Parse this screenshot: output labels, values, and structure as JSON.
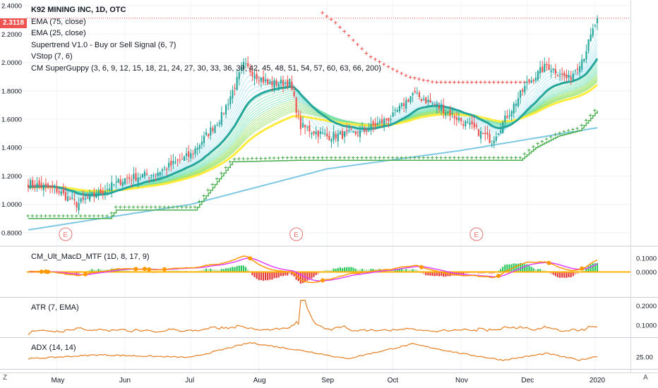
{
  "legend": {
    "title": "K92 MINING INC, 1D, OTC",
    "ema75": "EMA (75, close)",
    "ema25": "EMA (25, close)",
    "supertrend": "Supertrend V1.0 - Buy or Sell Signal (6, 7)",
    "vstop": "VStop (7, 6)",
    "guppy": "CM SuperGuppy (3, 6, 9, 12, 15, 18, 21, 24, 27, 30, 33, 36, 39, 42, 45, 48, 51, 54, 57, 60, 63, 66, 200)"
  },
  "last_price_label": "2.3118",
  "panes": {
    "macd": "CM_Ult_MacD_MTF (1D, 8, 17, 9)",
    "atr": "ATR (7, EMA)",
    "adx": "ADX (14, 14)"
  },
  "corner": {
    "left": "Z",
    "right": "A"
  },
  "colors": {
    "up": "#26a69a",
    "down": "#ef5350",
    "cyan": "#4fc3f7",
    "ema200": "#7ec8e3",
    "yellow": "#ffeb3b",
    "ema_thick": "#26a69a",
    "vstop": "#4caf50",
    "supertrend_sell": "#ef5350",
    "supertrend_buy": "#4caf50",
    "macd_pink": "#e040fb",
    "macd_orange": "#ff9800",
    "atr": "#e67e22"
  },
  "chart_data": [
    {
      "type": "candlestick",
      "title": "K92 MINING INC, 1D, OTC",
      "xlabel": "",
      "ylabel": "",
      "x_ticks": [
        "May",
        "Jun",
        "Jul",
        "Aug",
        "Sep",
        "Oct",
        "Nov",
        "Dec",
        "2020"
      ],
      "y_ticks": [
        "0.8000",
        "1.0000",
        "1.2000",
        "1.4000",
        "1.6000",
        "1.8000",
        "2.0000",
        "2.2000",
        "2.4000"
      ],
      "ylim": [
        0.75,
        2.43
      ],
      "last_price": 2.3118,
      "earnings_markers": [
        "E",
        "E",
        "E"
      ],
      "earnings_months": [
        "May",
        "Aug",
        "Nov"
      ],
      "price_keypoints": [
        [
          "Apr 18",
          1.15
        ],
        [
          "May 1",
          1.1
        ],
        [
          "May 10",
          1.0
        ],
        [
          "May 20",
          1.08
        ],
        [
          "Jun 1",
          1.18
        ],
        [
          "Jun 15",
          1.22
        ],
        [
          "Jul 1",
          1.35
        ],
        [
          "Jul 15",
          1.62
        ],
        [
          "Jul 25",
          1.98
        ],
        [
          "Aug 5",
          1.85
        ],
        [
          "Aug 15",
          1.86
        ],
        [
          "Aug 20",
          1.55
        ],
        [
          "Sep 1",
          1.48
        ],
        [
          "Sep 15",
          1.5
        ],
        [
          "Oct 1",
          1.62
        ],
        [
          "Oct 10",
          1.78
        ],
        [
          "Oct 25",
          1.66
        ],
        [
          "Nov 5",
          1.55
        ],
        [
          "Nov 15",
          1.45
        ],
        [
          "Dec 1",
          1.85
        ],
        [
          "Dec 10",
          1.98
        ],
        [
          "Dec 20",
          1.88
        ],
        [
          "Dec 27",
          2.05
        ],
        [
          "Jan 2",
          2.31
        ]
      ],
      "ema200_keypoints": [
        [
          "Apr 18",
          0.82
        ],
        [
          "Jul 1",
          1.0
        ],
        [
          "Sep 1",
          1.25
        ],
        [
          "Nov 1",
          1.38
        ],
        [
          "Jan 2",
          1.54
        ]
      ],
      "vstop_keypoints": [
        [
          "Apr 18",
          0.9
        ],
        [
          "May 25",
          0.9
        ],
        [
          "May 28",
          0.96
        ],
        [
          "Jul 3",
          0.96
        ],
        [
          "Jul 20",
          1.3
        ],
        [
          "Aug 18",
          1.31
        ],
        [
          "Nov 28",
          1.31
        ],
        [
          "Dec 5",
          1.4
        ],
        [
          "Dec 15",
          1.48
        ],
        [
          "Dec 25",
          1.52
        ],
        [
          "Jan 2",
          1.66
        ]
      ],
      "supertrend_sell_keypoints": [
        [
          "Aug 30",
          2.35
        ],
        [
          "Sep 5",
          2.28
        ],
        [
          "Sep 20",
          2.05
        ],
        [
          "Sep 30",
          1.96
        ],
        [
          "Oct 8",
          1.9
        ],
        [
          "Oct 20",
          1.86
        ],
        [
          "Nov 30",
          1.86
        ]
      ]
    },
    {
      "type": "line",
      "title": "CM_Ult_MacD_MTF (1D, 8, 17, 9)",
      "y_ticks": [
        "0.1000",
        "0.0000"
      ],
      "ylim": [
        -0.16,
        0.16
      ]
    },
    {
      "type": "line",
      "title": "ATR (7, EMA)",
      "y_ticks": [
        "0.2000",
        "0.1000"
      ],
      "ylim": [
        0.05,
        0.23
      ]
    },
    {
      "type": "line",
      "title": "ADX (14, 14)",
      "y_ticks": [
        "25.00"
      ],
      "ylim": [
        10,
        50
      ]
    }
  ]
}
